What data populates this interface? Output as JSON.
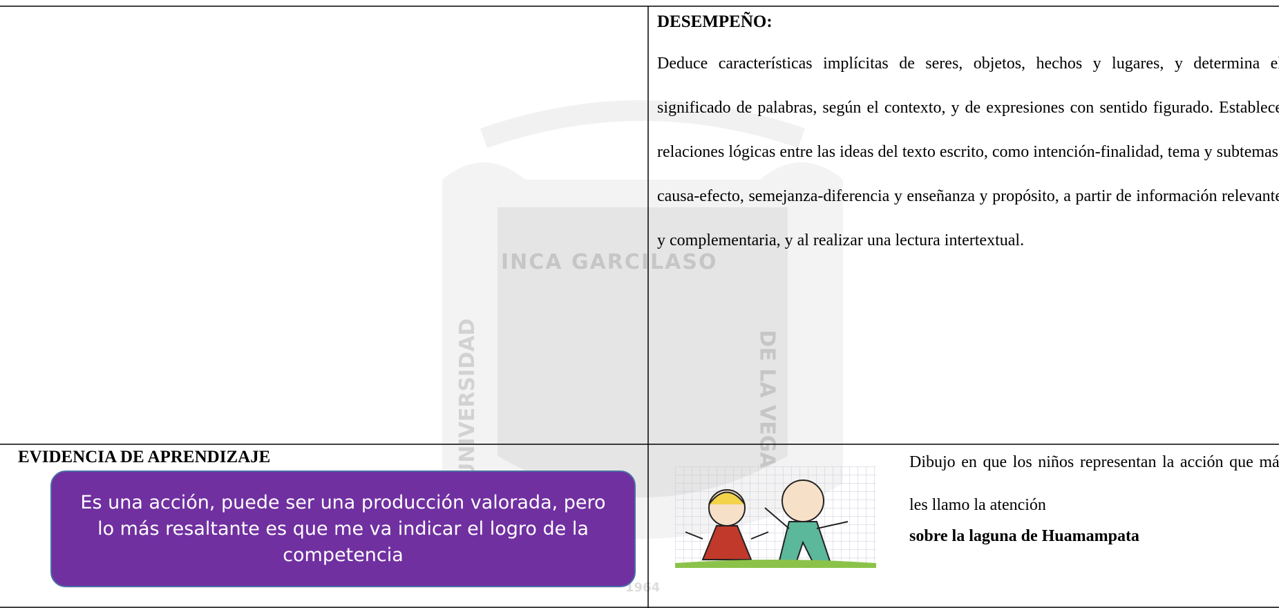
{
  "performance": {
    "heading": "DESEMPEÑO:",
    "text": "Deduce características implícitas de seres, objetos, hechos y lugares, y determina el significado de palabras, según el contexto, y de expresiones con sentido figurado. Establece relaciones lógicas entre las ideas del texto escrito, como intención-finalidad, tema y subtemas, causa-efecto, semejanza-diferencia y enseñanza y propósito, a partir de información relevante y complementaria, y al realizar una lectura intertextual."
  },
  "evidence": {
    "heading": "EVIDENCIA  DE APRENDIZAJE",
    "callout": "Es una acción, puede ser una producción valorada, pero lo más resaltante es que me va indicar el logro de la competencia"
  },
  "evidence_detail": {
    "text": "Dibujo en que los niños representan la acción que más les llamo la atención",
    "bold_text": "sobre la laguna de Huamampata"
  },
  "watermark": {
    "top": "INCA GARCILASO",
    "left": "UNIVERSIDAD",
    "right": "DE LA VEGA",
    "year": "1964"
  }
}
